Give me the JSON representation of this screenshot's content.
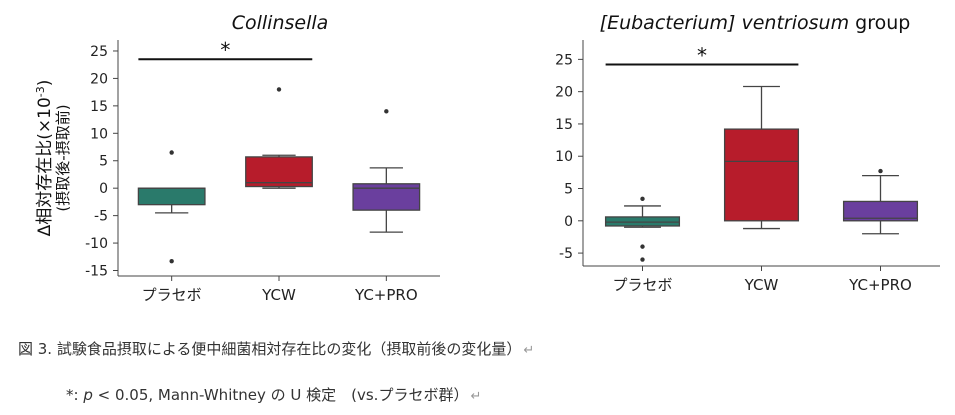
{
  "chart_data": [
    {
      "type": "box",
      "title": "Collinsella",
      "title_italic_part": "Collinsella",
      "title_regular_part": "",
      "ylabel_line1": "Δ相対存在比(×10",
      "ylabel_sup": "-3",
      "ylabel_close": ")",
      "ylabel_line2": "(摂取後-摂取前)",
      "ylim": [
        -16,
        27
      ],
      "yticks": [
        -15,
        -10,
        -5,
        0,
        5,
        10,
        15,
        20,
        25
      ],
      "categories": [
        "プラセボ",
        "YCW",
        "YC+PRO"
      ],
      "boxes": [
        {
          "name": "プラセボ",
          "q1": -3.0,
          "median": 0.0,
          "q3": 0.0,
          "whisker_low": -4.5,
          "whisker_high": 0.0,
          "outliers": [
            6.5,
            -13.3
          ],
          "color": "#2a7a6b"
        },
        {
          "name": "YCW",
          "q1": 0.3,
          "median": 1.0,
          "q3": 5.7,
          "whisker_low": 0.0,
          "whisker_high": 6.0,
          "outliers": [
            18.0
          ],
          "color": "#b71c2b"
        },
        {
          "name": "YC+PRO",
          "q1": -4.0,
          "median": 0.0,
          "q3": 0.8,
          "whisker_low": -8.0,
          "whisker_high": 3.7,
          "outliers": [
            14.0
          ],
          "color": "#6a3f9e"
        }
      ],
      "significance": {
        "from": 0,
        "to": 1,
        "y": 23.5,
        "label": "*"
      }
    },
    {
      "type": "box",
      "title": "[Eubacterium] ventriosum group",
      "title_italic_part": "[Eubacterium] ventriosum",
      "title_regular_part": "group",
      "ylim": [
        -7,
        28
      ],
      "yticks": [
        -5,
        0,
        5,
        10,
        15,
        20,
        25
      ],
      "categories": [
        "プラセボ",
        "YCW",
        "YC+PRO"
      ],
      "boxes": [
        {
          "name": "プラセボ",
          "q1": -0.8,
          "median": -0.2,
          "q3": 0.6,
          "whisker_low": -1.0,
          "whisker_high": 2.3,
          "outliers": [
            3.4,
            -4.0,
            -6.0
          ],
          "color": "#2a7a6b"
        },
        {
          "name": "YCW",
          "q1": 0.0,
          "median": 9.2,
          "q3": 14.2,
          "whisker_low": -1.2,
          "whisker_high": 20.8,
          "outliers": [],
          "color": "#b71c2b"
        },
        {
          "name": "YC+PRO",
          "q1": 0.0,
          "median": 0.4,
          "q3": 3.0,
          "whisker_low": -2.0,
          "whisker_high": 7.0,
          "outliers": [
            7.7
          ],
          "color": "#6a3f9e"
        }
      ],
      "significance": {
        "from": 0,
        "to": 1,
        "y": 24.2,
        "label": "*"
      }
    }
  ],
  "caption": {
    "text": "図 3. 試験食品摂取による便中細菌相対存在比の変化（摂取前後の変化量）",
    "return_mark": "↵"
  },
  "footnote": {
    "star": "*: ",
    "p": "p",
    "rest": " < 0.05, Mann-Whitney の U 検定　(vs.プラセボ群）",
    "return_mark": "↵"
  }
}
